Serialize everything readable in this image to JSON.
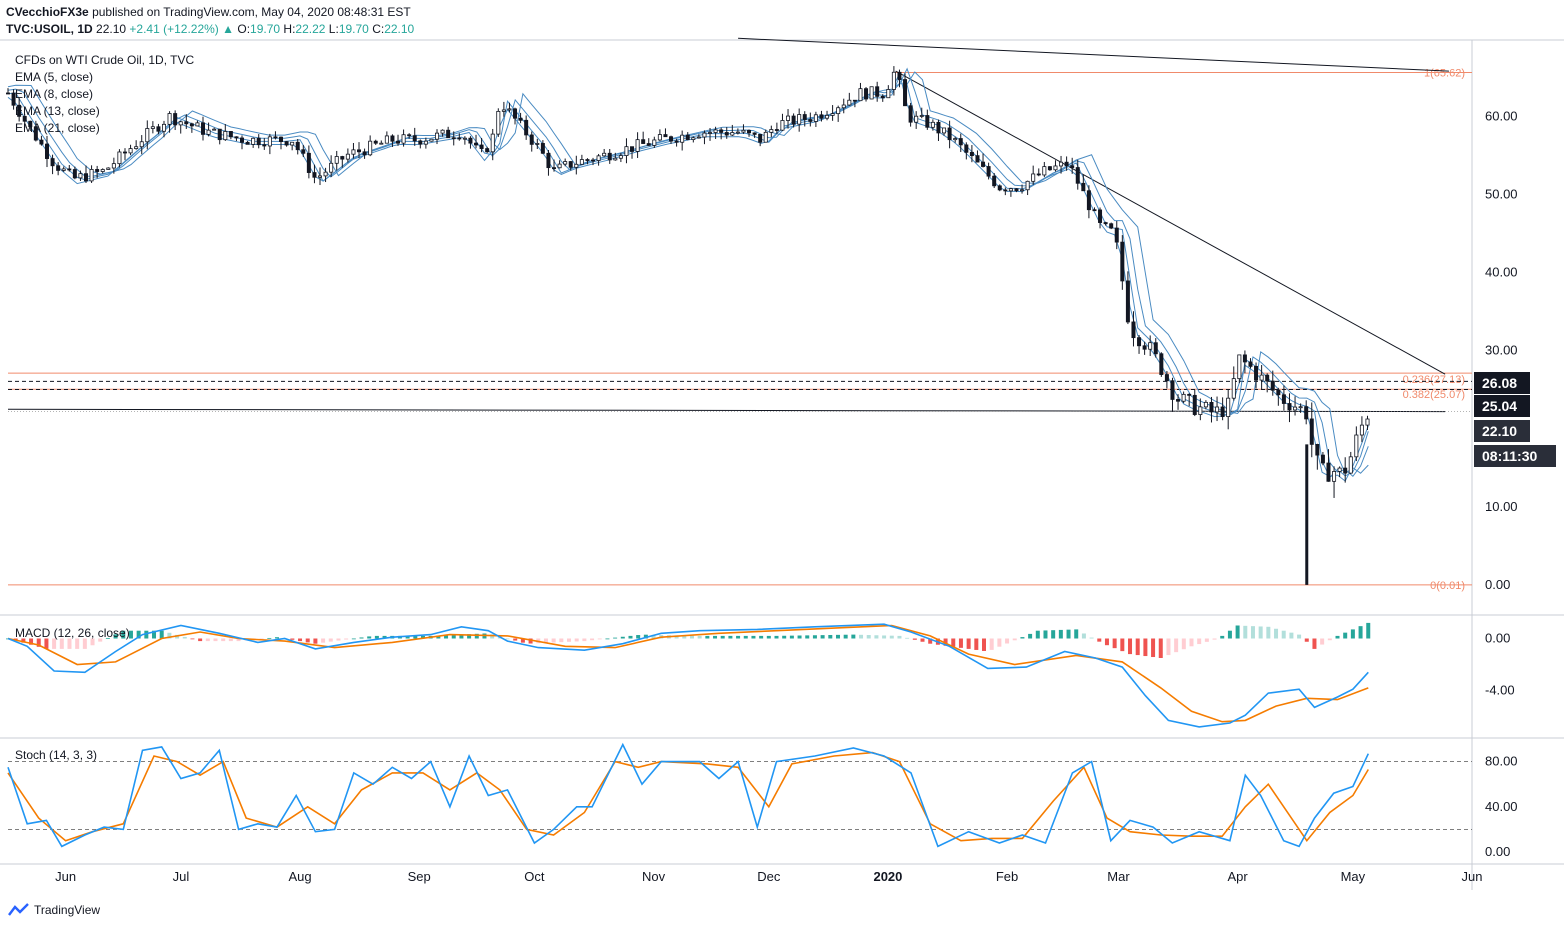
{
  "header": {
    "publisher": "CVecchioFX3e",
    "published_text": "published on TradingView.com, May 04, 2020 08:48:31 EST",
    "symbol": "TVC:USOIL, 1D",
    "last": "22.10",
    "change": "+2.41 (+12.22%)",
    "o_label": "O:",
    "o": "19.70",
    "h_label": "H:",
    "h": "22.22",
    "l_label": "L:",
    "l": "19.70",
    "c_label": "C:",
    "c": "22.10"
  },
  "overlay": {
    "title": "CFDs on WTI Crude Oil, 1D, TVC",
    "ema1": "EMA (5, close)",
    "ema2": "EMA (8, close)",
    "ema3": "EMA (13, close)",
    "ema4": "EMA (21, close)",
    "macd": "MACD (12, 26, close)",
    "stoch": "Stoch (14, 3, 3)"
  },
  "footer": {
    "brand": "TradingView"
  },
  "colors": {
    "candle": "#131722",
    "ema": "#4a8bc2",
    "macd_line": "#2196f3",
    "signal_line": "#f57c00",
    "hist_up_strong": "#26a69a",
    "hist_up_weak": "#b2dfdb",
    "hist_down_strong": "#ef5350",
    "hist_down_weak": "#ffcdd2",
    "fib": "#f08a6b",
    "price_badge": "#131722"
  },
  "chart_data": {
    "type": "candlestick",
    "x_axis": {
      "labels": [
        "Jun",
        "Jul",
        "Aug",
        "Sep",
        "Oct",
        "Nov",
        "Dec",
        "2020",
        "Feb",
        "Mar",
        "Apr",
        "May",
        "Jun"
      ],
      "label_days": [
        15,
        45,
        76,
        107,
        137,
        168,
        198,
        229,
        260,
        289,
        320,
        350,
        381
      ]
    },
    "price_axis": {
      "ticks": [
        0,
        10,
        20,
        30,
        40,
        50,
        60
      ],
      "tick_labels": [
        "0.00",
        "10.00",
        "",
        "30.00",
        "40.00",
        "50.00",
        "60.00"
      ],
      "range": [
        0,
        70
      ]
    },
    "price_path": [
      [
        0,
        63
      ],
      [
        5,
        59
      ],
      [
        12,
        54
      ],
      [
        17,
        52
      ],
      [
        25,
        53
      ],
      [
        32,
        56
      ],
      [
        42,
        60
      ],
      [
        52,
        58
      ],
      [
        62,
        57
      ],
      [
        74,
        57
      ],
      [
        80,
        52
      ],
      [
        88,
        55
      ],
      [
        100,
        57
      ],
      [
        106,
        57
      ],
      [
        118,
        58
      ],
      [
        123,
        55
      ],
      [
        126,
        57
      ],
      [
        128,
        62
      ],
      [
        133,
        59
      ],
      [
        138,
        56
      ],
      [
        142,
        53
      ],
      [
        147,
        54
      ],
      [
        155,
        55
      ],
      [
        162,
        56
      ],
      [
        170,
        57
      ],
      [
        180,
        58
      ],
      [
        190,
        58
      ],
      [
        196,
        57
      ],
      [
        200,
        59
      ],
      [
        210,
        60
      ],
      [
        222,
        63
      ],
      [
        228,
        63
      ],
      [
        231,
        66
      ],
      [
        234,
        60
      ],
      [
        240,
        59
      ],
      [
        246,
        57
      ],
      [
        252,
        54
      ],
      [
        258,
        51
      ],
      [
        263,
        51
      ],
      [
        270,
        53
      ],
      [
        276,
        54
      ],
      [
        280,
        50
      ],
      [
        284,
        46
      ],
      [
        288,
        45
      ],
      [
        292,
        33
      ],
      [
        296,
        31
      ],
      [
        300,
        28
      ],
      [
        304,
        24
      ],
      [
        308,
        23
      ],
      [
        314,
        22
      ],
      [
        318,
        23
      ],
      [
        320,
        29
      ],
      [
        323,
        28
      ],
      [
        327,
        26
      ],
      [
        331,
        24
      ],
      [
        335,
        23
      ],
      [
        338,
        22
      ],
      [
        340,
        16
      ],
      [
        342,
        14
      ],
      [
        344,
        15
      ],
      [
        347,
        14
      ],
      [
        350,
        17
      ],
      [
        352,
        20
      ],
      [
        354,
        22.1
      ]
    ],
    "ema_offsets": [
      0.8,
      1.6,
      2.6,
      3.8
    ],
    "ema_labels": [
      "EMA 5",
      "EMA 8",
      "EMA 13",
      "EMA 21"
    ],
    "spike_low": {
      "day": 338,
      "value": 0.01
    },
    "price_labels": [
      {
        "value": 26.08,
        "text": "26.08"
      },
      {
        "value": 25.04,
        "text": "25.04"
      },
      {
        "value": 22.1,
        "text": "22.10"
      },
      {
        "value": 19.1,
        "text": "08:11:30"
      }
    ],
    "fib_levels": [
      {
        "value": 65.62,
        "text": "1(65.62)"
      },
      {
        "value": 27.13,
        "text": "0.236(27.13)"
      },
      {
        "value": 25.07,
        "text": "0.382(25.07)"
      },
      {
        "value": 0.01,
        "text": "0(0.01)"
      }
    ],
    "dashed_levels": [
      26.08,
      25.04
    ],
    "trendlines": [
      {
        "from": [
          190,
          70
        ],
        "to": [
          375,
          65.8
        ]
      },
      {
        "from": [
          231,
          65.8
        ],
        "to": [
          374,
          27.0
        ]
      },
      {
        "from": [
          0,
          22.5
        ],
        "to": [
          374,
          22.2
        ]
      }
    ],
    "macd": {
      "axis_ticks": [
        0,
        -4
      ],
      "axis_labels": [
        "0.00",
        "-4.00"
      ],
      "range": [
        -7.2,
        1.6
      ],
      "line": [
        [
          0,
          0
        ],
        [
          5,
          -0.6
        ],
        [
          12,
          -2.5
        ],
        [
          20,
          -2.6
        ],
        [
          28,
          -1.0
        ],
        [
          35,
          0.3
        ],
        [
          45,
          1.0
        ],
        [
          55,
          0.4
        ],
        [
          65,
          -0.3
        ],
        [
          72,
          0.0
        ],
        [
          80,
          -0.8
        ],
        [
          90,
          -0.3
        ],
        [
          100,
          0.1
        ],
        [
          110,
          0.3
        ],
        [
          118,
          0.9
        ],
        [
          125,
          0.6
        ],
        [
          130,
          -0.2
        ],
        [
          138,
          -0.7
        ],
        [
          150,
          -0.9
        ],
        [
          160,
          -0.4
        ],
        [
          170,
          0.4
        ],
        [
          180,
          0.6
        ],
        [
          195,
          0.7
        ],
        [
          210,
          0.9
        ],
        [
          228,
          1.1
        ],
        [
          235,
          0.5
        ],
        [
          245,
          -0.6
        ],
        [
          255,
          -2.3
        ],
        [
          265,
          -2.2
        ],
        [
          275,
          -1.0
        ],
        [
          283,
          -1.5
        ],
        [
          290,
          -2.2
        ],
        [
          296,
          -4.4
        ],
        [
          302,
          -6.3
        ],
        [
          310,
          -6.8
        ],
        [
          318,
          -6.5
        ],
        [
          322,
          -5.9
        ],
        [
          328,
          -4.2
        ],
        [
          336,
          -3.9
        ],
        [
          340,
          -5.3
        ],
        [
          346,
          -4.5
        ],
        [
          350,
          -3.9
        ],
        [
          354,
          -2.6
        ]
      ],
      "signal": [
        [
          0,
          0
        ],
        [
          8,
          -0.5
        ],
        [
          18,
          -2.0
        ],
        [
          28,
          -1.8
        ],
        [
          40,
          0.0
        ],
        [
          50,
          0.5
        ],
        [
          60,
          0.0
        ],
        [
          72,
          -0.2
        ],
        [
          85,
          -0.7
        ],
        [
          100,
          -0.3
        ],
        [
          115,
          0.3
        ],
        [
          130,
          0.2
        ],
        [
          145,
          -0.6
        ],
        [
          158,
          -0.7
        ],
        [
          170,
          0.1
        ],
        [
          185,
          0.4
        ],
        [
          200,
          0.6
        ],
        [
          215,
          0.8
        ],
        [
          230,
          1.0
        ],
        [
          240,
          0.2
        ],
        [
          250,
          -1.2
        ],
        [
          262,
          -2.0
        ],
        [
          278,
          -1.3
        ],
        [
          290,
          -1.8
        ],
        [
          300,
          -3.8
        ],
        [
          308,
          -5.6
        ],
        [
          316,
          -6.4
        ],
        [
          322,
          -6.3
        ],
        [
          330,
          -5.2
        ],
        [
          338,
          -4.6
        ],
        [
          346,
          -4.7
        ],
        [
          354,
          -3.8
        ]
      ],
      "hist_path": [
        [
          0,
          0
        ],
        [
          10,
          -0.8
        ],
        [
          20,
          -0.8
        ],
        [
          30,
          0.6
        ],
        [
          40,
          0.6
        ],
        [
          50,
          -0.2
        ],
        [
          60,
          -0.2
        ],
        [
          70,
          0.1
        ],
        [
          80,
          -0.4
        ],
        [
          95,
          0.2
        ],
        [
          110,
          0.2
        ],
        [
          125,
          0.4
        ],
        [
          135,
          -0.4
        ],
        [
          150,
          -0.2
        ],
        [
          165,
          0.3
        ],
        [
          180,
          0.2
        ],
        [
          200,
          0.2
        ],
        [
          220,
          0.3
        ],
        [
          232,
          0.2
        ],
        [
          240,
          -0.4
        ],
        [
          255,
          -1.0
        ],
        [
          268,
          0.6
        ],
        [
          278,
          0.7
        ],
        [
          285,
          -0.4
        ],
        [
          292,
          -1.2
        ],
        [
          300,
          -1.5
        ],
        [
          308,
          -0.6
        ],
        [
          315,
          0.0
        ],
        [
          320,
          1.0
        ],
        [
          328,
          0.9
        ],
        [
          336,
          0.3
        ],
        [
          340,
          -0.8
        ],
        [
          346,
          0.2
        ],
        [
          350,
          0.7
        ],
        [
          354,
          1.2
        ]
      ]
    },
    "stoch": {
      "axis_ticks": [
        80,
        40,
        0
      ],
      "axis_labels": [
        "80.00",
        "40.00",
        "0.00"
      ],
      "range": [
        -3,
        100
      ],
      "dashed_levels": [
        80,
        20
      ],
      "k": [
        [
          0,
          75
        ],
        [
          5,
          25
        ],
        [
          10,
          28
        ],
        [
          14,
          5
        ],
        [
          20,
          15
        ],
        [
          25,
          22
        ],
        [
          30,
          20
        ],
        [
          35,
          90
        ],
        [
          40,
          93
        ],
        [
          45,
          65
        ],
        [
          50,
          70
        ],
        [
          55,
          90
        ],
        [
          60,
          20
        ],
        [
          65,
          25
        ],
        [
          70,
          22
        ],
        [
          75,
          50
        ],
        [
          80,
          18
        ],
        [
          85,
          20
        ],
        [
          90,
          70
        ],
        [
          95,
          60
        ],
        [
          100,
          75
        ],
        [
          105,
          65
        ],
        [
          110,
          80
        ],
        [
          115,
          40
        ],
        [
          120,
          85
        ],
        [
          125,
          50
        ],
        [
          130,
          55
        ],
        [
          137,
          8
        ],
        [
          142,
          20
        ],
        [
          148,
          40
        ],
        [
          152,
          40
        ],
        [
          160,
          95
        ],
        [
          165,
          60
        ],
        [
          170,
          80
        ],
        [
          180,
          80
        ],
        [
          185,
          65
        ],
        [
          190,
          80
        ],
        [
          195,
          22
        ],
        [
          200,
          80
        ],
        [
          210,
          85
        ],
        [
          220,
          92
        ],
        [
          228,
          85
        ],
        [
          235,
          70
        ],
        [
          242,
          5
        ],
        [
          250,
          18
        ],
        [
          258,
          8
        ],
        [
          264,
          15
        ],
        [
          270,
          8
        ],
        [
          277,
          70
        ],
        [
          282,
          80
        ],
        [
          287,
          10
        ],
        [
          292,
          28
        ],
        [
          298,
          22
        ],
        [
          303,
          8
        ],
        [
          310,
          18
        ],
        [
          318,
          10
        ],
        [
          322,
          68
        ],
        [
          326,
          50
        ],
        [
          332,
          10
        ],
        [
          336,
          5
        ],
        [
          340,
          30
        ],
        [
          345,
          52
        ],
        [
          350,
          58
        ],
        [
          354,
          87
        ]
      ],
      "d": [
        [
          0,
          70
        ],
        [
          8,
          30
        ],
        [
          15,
          10
        ],
        [
          22,
          18
        ],
        [
          30,
          25
        ],
        [
          38,
          85
        ],
        [
          44,
          80
        ],
        [
          50,
          68
        ],
        [
          56,
          80
        ],
        [
          62,
          30
        ],
        [
          70,
          22
        ],
        [
          78,
          40
        ],
        [
          85,
          25
        ],
        [
          92,
          55
        ],
        [
          100,
          70
        ],
        [
          108,
          70
        ],
        [
          115,
          55
        ],
        [
          122,
          70
        ],
        [
          128,
          55
        ],
        [
          135,
          20
        ],
        [
          142,
          15
        ],
        [
          150,
          35
        ],
        [
          158,
          80
        ],
        [
          164,
          75
        ],
        [
          170,
          80
        ],
        [
          182,
          78
        ],
        [
          190,
          75
        ],
        [
          198,
          40
        ],
        [
          204,
          78
        ],
        [
          215,
          85
        ],
        [
          225,
          88
        ],
        [
          232,
          80
        ],
        [
          240,
          25
        ],
        [
          248,
          10
        ],
        [
          256,
          12
        ],
        [
          264,
          12
        ],
        [
          272,
          45
        ],
        [
          280,
          75
        ],
        [
          286,
          30
        ],
        [
          292,
          18
        ],
        [
          300,
          15
        ],
        [
          308,
          14
        ],
        [
          316,
          14
        ],
        [
          322,
          40
        ],
        [
          328,
          60
        ],
        [
          334,
          30
        ],
        [
          338,
          10
        ],
        [
          344,
          35
        ],
        [
          350,
          50
        ],
        [
          354,
          73
        ]
      ]
    }
  }
}
